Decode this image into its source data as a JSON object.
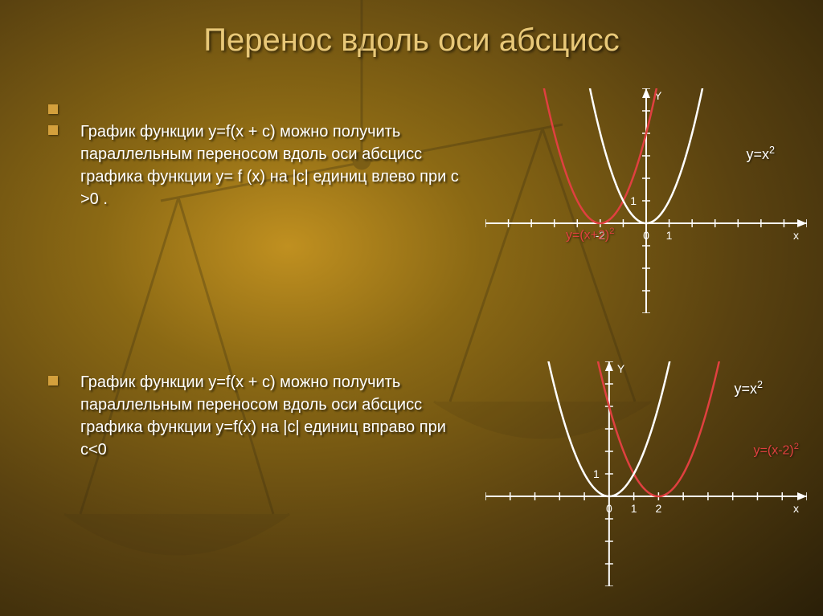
{
  "title": "Перенос вдоль оси абсцисс",
  "paragraphs": {
    "p1": "График функции y=f(x + c)   можно получить параллельным переносом вдоль оси абсцисс графика функции y= f (x) на |c| единиц  влево при c >0 .",
    "p2": "График функции y=f(x + c) можно получить параллельным переносом вдоль оси абсцисс графика функции y=f(x) на |c| единиц вправо при c<0"
  },
  "chart_top": {
    "type": "line",
    "axis_color": "#ffffff",
    "curve1_color": "#ffffff",
    "curve2_color": "#e04040",
    "xlim": [
      -7,
      7
    ],
    "ylim": [
      -4,
      6
    ],
    "x_ticks": [
      -2,
      0,
      1
    ],
    "x_tick_labels": [
      "-2",
      "0",
      "1"
    ],
    "y_ticks": [
      1
    ],
    "y_tick_labels": [
      "1"
    ],
    "x_axis_label": "x",
    "y_axis_label": "Y",
    "eq1": "y=x",
    "eq1_sup": "2",
    "eq2": "y=(x+2)",
    "eq2_sup": "2",
    "curve1_vertex_x": 0,
    "curve2_vertex_x": -2,
    "tick_fontsize": 14,
    "axis_label_fontsize": 14,
    "line_width": 2
  },
  "chart_bottom": {
    "type": "line",
    "axis_color": "#ffffff",
    "curve1_color": "#ffffff",
    "curve2_color": "#e04040",
    "xlim": [
      -5,
      8
    ],
    "ylim": [
      -4,
      6
    ],
    "x_ticks": [
      0,
      1,
      2
    ],
    "x_tick_labels": [
      "0",
      "1",
      "2"
    ],
    "y_ticks": [
      1
    ],
    "y_tick_labels": [
      "1"
    ],
    "x_axis_label": "x",
    "y_axis_label": "Y",
    "eq1": "y=x",
    "eq1_sup": "2",
    "eq2": "y=(x-2)",
    "eq2_sup": "2",
    "curve1_vertex_x": 0,
    "curve2_vertex_x": 2,
    "tick_fontsize": 14,
    "axis_label_fontsize": 14,
    "line_width": 2
  },
  "colors": {
    "title": "#e8c878",
    "text": "#ffffff",
    "bullet": "#d4a03c"
  }
}
